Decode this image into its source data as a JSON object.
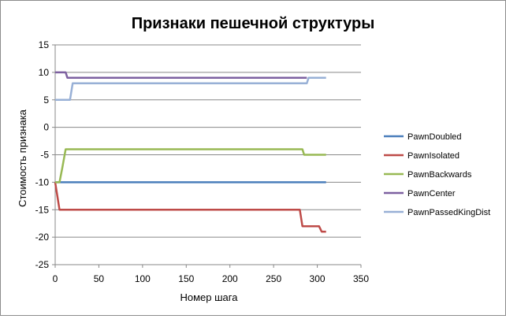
{
  "chart_data": {
    "type": "line",
    "title": "Признаки пешечной структуры",
    "xlabel": "Номер шага",
    "ylabel": "Стоимость признака",
    "xlim": [
      0,
      350
    ],
    "ylim": [
      -25,
      15
    ],
    "xticks": [
      0,
      50,
      100,
      150,
      200,
      250,
      300,
      350
    ],
    "yticks": [
      15,
      10,
      5,
      0,
      -5,
      -10,
      -15,
      -20,
      -25
    ],
    "grid": "horizontal",
    "legend_position": "right",
    "series": [
      {
        "name": "PawnDoubled",
        "color": "#4a7ebb",
        "points": [
          [
            0,
            -10
          ],
          [
            310,
            -10
          ]
        ]
      },
      {
        "name": "PawnIsolated",
        "color": "#be4b48",
        "points": [
          [
            0,
            -10
          ],
          [
            5,
            -15
          ],
          [
            280,
            -15
          ],
          [
            283,
            -18
          ],
          [
            302,
            -18
          ],
          [
            305,
            -19
          ],
          [
            310,
            -19
          ]
        ]
      },
      {
        "name": "PawnBackwards",
        "color": "#98b954",
        "points": [
          [
            0,
            -10
          ],
          [
            5,
            -10
          ],
          [
            8,
            -7.5
          ],
          [
            12,
            -4
          ],
          [
            283,
            -4
          ],
          [
            285,
            -5
          ],
          [
            310,
            -5
          ]
        ]
      },
      {
        "name": "PawnCenter",
        "color": "#7d60a0",
        "points": [
          [
            0,
            10
          ],
          [
            12,
            10
          ],
          [
            14,
            9
          ],
          [
            288,
            9
          ]
        ]
      },
      {
        "name": "PawnPassedKingDist",
        "color": "#98b0d6",
        "points": [
          [
            0,
            5
          ],
          [
            17,
            5
          ],
          [
            20,
            8
          ],
          [
            288,
            8
          ],
          [
            290,
            9
          ],
          [
            310,
            9
          ]
        ]
      }
    ]
  }
}
